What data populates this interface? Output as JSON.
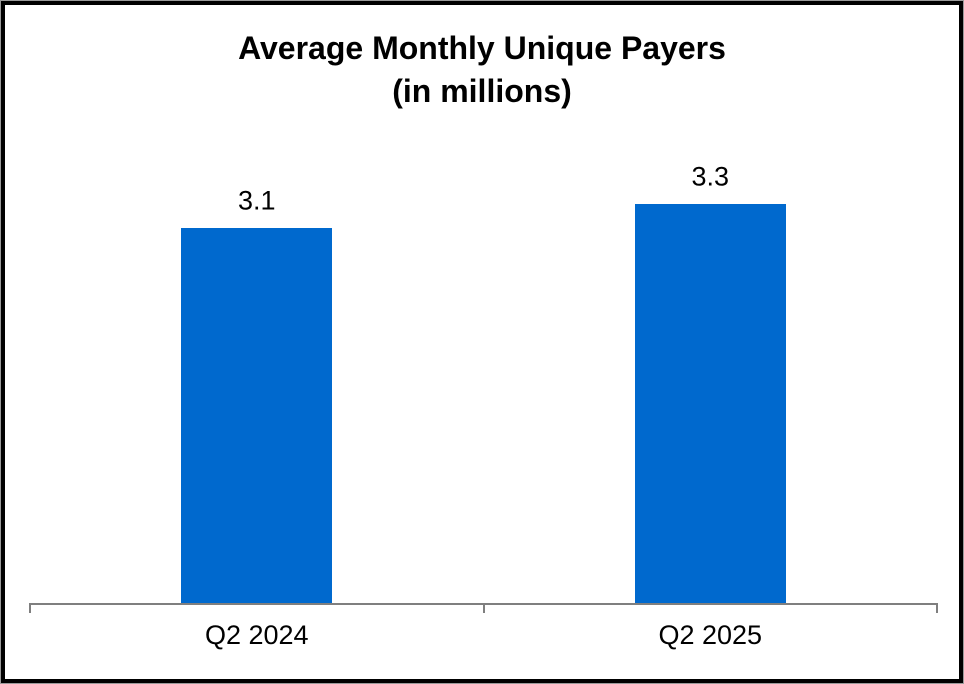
{
  "chart_data": {
    "type": "bar",
    "title": "Average Monthly Unique Payers",
    "subtitle": "(in millions)",
    "categories": [
      "Q2 2024",
      "Q2 2025"
    ],
    "values": [
      3.1,
      3.3
    ],
    "value_labels": [
      "3.1",
      "3.3"
    ],
    "xlabel": "",
    "ylabel": "",
    "ylim": [
      0,
      3.95
    ],
    "grid": false,
    "legend_position": "none",
    "bar_color": "#0069CE",
    "axis_color": "#7F7F7F",
    "text_color": "#000000",
    "frame_border_color": "#000000"
  }
}
